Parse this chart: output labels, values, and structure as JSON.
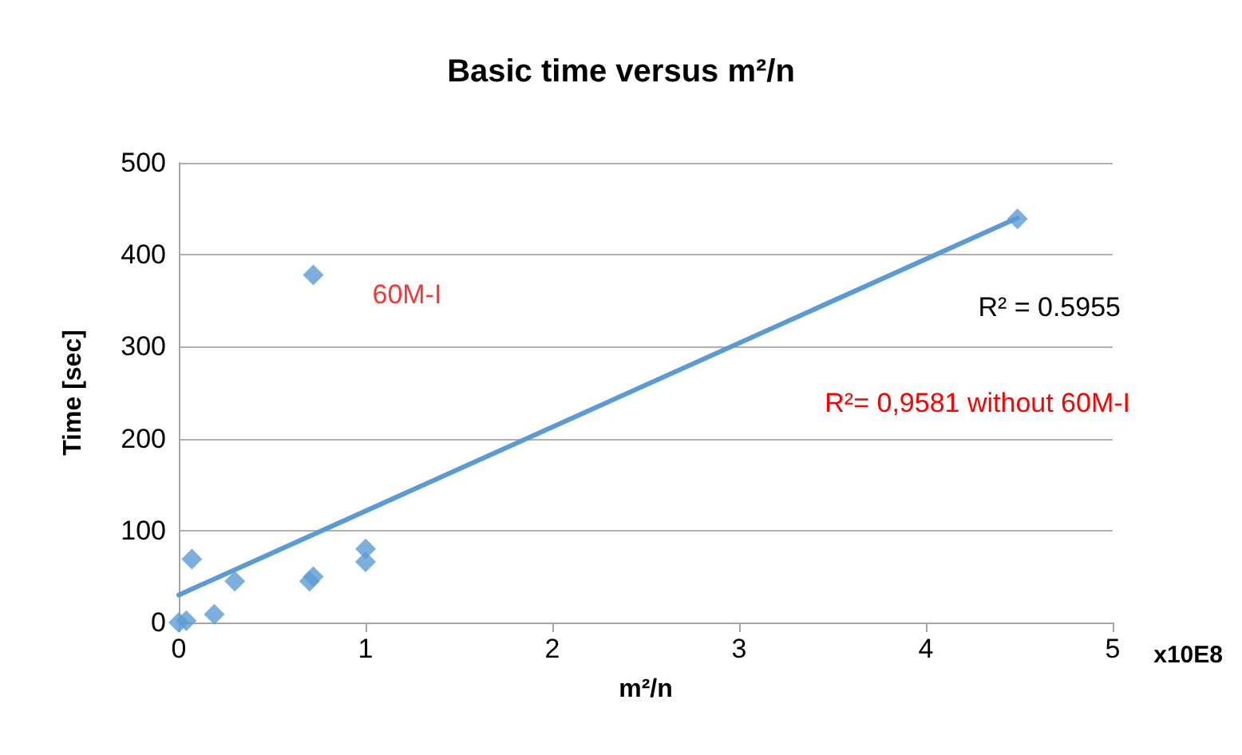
{
  "chart_data": {
    "type": "scatter",
    "title": "Basic time versus m²/n",
    "xlabel": "m²/n",
    "ylabel": "Time [sec]",
    "series": [
      {
        "color": "#5b9bd5",
        "marker": "diamond",
        "x": [
          0,
          0.04,
          0.07,
          0.19,
          0.3,
          0.7,
          0.72,
          0.72,
          1.0,
          1.0,
          4.49
        ],
        "values": [
          0,
          2,
          69,
          9,
          45,
          45,
          50,
          378,
          66,
          80,
          439
        ]
      },
      {
        "type": "line",
        "marker": "none",
        "color": "#5b9bd5",
        "x": [
          0,
          4.49
        ],
        "values": [
          30,
          440
        ]
      }
    ],
    "annotations": [
      {
        "text": "60M-I",
        "x": 0.72,
        "y": 378
      },
      "R² = 0.5955",
      "R²= 0,9581 without 60M-I",
      "x10E8"
    ],
    "xlim": [
      0,
      5
    ],
    "xticks": [
      0,
      1,
      2,
      3,
      4,
      5
    ],
    "ylim": [
      0,
      500
    ],
    "yticks": [
      0,
      100,
      200,
      300,
      400,
      500
    ],
    "grid": "y"
  }
}
